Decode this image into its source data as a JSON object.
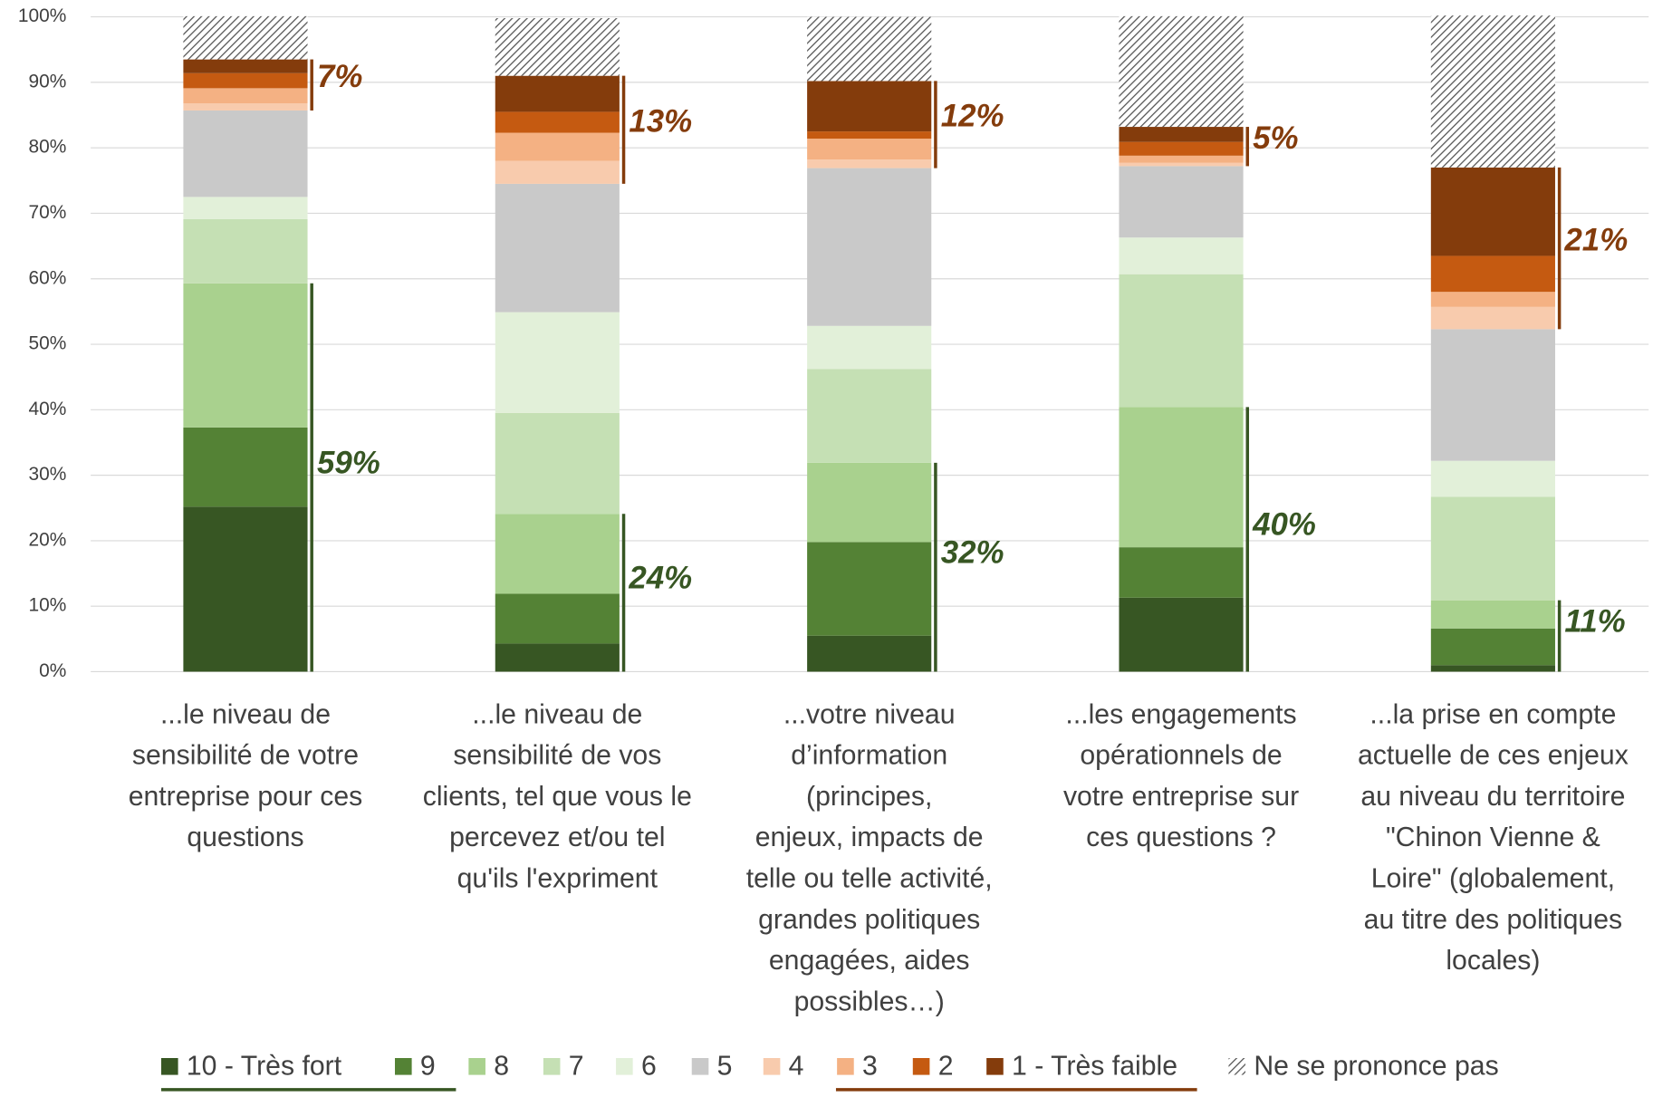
{
  "chart_data": {
    "type": "stacked_bar",
    "categories": [
      [
        "...le niveau de",
        "sensibilité de votre",
        "entreprise pour ces",
        "questions"
      ],
      [
        "...le niveau de",
        "sensibilité de vos",
        "clients, tel que vous le",
        "percevez et/ou tel",
        "qu'ils l'expriment"
      ],
      [
        "...votre niveau",
        "d’information",
        "(principes,",
        "enjeux,  impacts de",
        "telle ou telle activité,",
        "grandes politiques",
        "engagées, aides",
        "possibles…)"
      ],
      [
        "...les engagements",
        "opérationnels de",
        "votre entreprise sur",
        "ces questions ?"
      ],
      [
        "...la prise en compte",
        "actuelle de ces enjeux",
        "au niveau du territoire",
        "\"Chinon Vienne &",
        "Loire\" (globalement,",
        "au titre des politiques",
        "locales)"
      ]
    ],
    "series": [
      {
        "name": "10 - Très fort",
        "color": "#375623",
        "values": [
          25.2,
          4.3,
          5.5,
          11.3,
          1.0
        ]
      },
      {
        "name": "9",
        "color": "#548235",
        "values": [
          12.1,
          7.6,
          14.3,
          7.7,
          5.6
        ]
      },
      {
        "name": "8",
        "color": "#a9d18e",
        "values": [
          22.0,
          12.2,
          12.1,
          21.4,
          4.3
        ]
      },
      {
        "name": "7",
        "color": "#c5e0b4",
        "values": [
          9.8,
          15.4,
          14.3,
          20.3,
          15.8
        ]
      },
      {
        "name": "6",
        "color": "#e2f0d9",
        "values": [
          3.4,
          15.4,
          6.6,
          5.6,
          5.5
        ]
      },
      {
        "name": "5",
        "color": "#c9c9c9",
        "values": [
          13.2,
          19.6,
          24.1,
          10.9,
          20.1
        ]
      },
      {
        "name": "4",
        "color": "#f8cbad",
        "values": [
          1.1,
          3.5,
          1.3,
          0.5,
          3.4
        ]
      },
      {
        "name": "3",
        "color": "#f4b183",
        "values": [
          2.3,
          4.3,
          3.2,
          1.1,
          2.3
        ]
      },
      {
        "name": "2",
        "color": "#c55a11",
        "values": [
          2.3,
          3.2,
          1.1,
          2.1,
          5.5
        ]
      },
      {
        "name": "1 - Très faible",
        "color": "#843c0c",
        "values": [
          2.1,
          5.5,
          7.7,
          2.3,
          13.5
        ]
      },
      {
        "name": "Ne se prononce pas",
        "color": "hatch",
        "values": [
          6.6,
          8.8,
          9.8,
          16.9,
          23.2
        ]
      }
    ],
    "positive_labels": [
      "59%",
      "24%",
      "32%",
      "40%",
      "11%"
    ],
    "negative_labels": [
      "7%",
      "13%",
      "12%",
      "5%",
      "21%"
    ],
    "ylim": [
      0,
      100
    ],
    "yticks": [
      {
        "value": 0,
        "label": "0%"
      },
      {
        "value": 10,
        "label": "10%"
      },
      {
        "value": 20,
        "label": "20%"
      },
      {
        "value": 30,
        "label": "30%"
      },
      {
        "value": 40,
        "label": "40%"
      },
      {
        "value": 50,
        "label": "50%"
      },
      {
        "value": 60,
        "label": "60%"
      },
      {
        "value": 70,
        "label": "70%"
      },
      {
        "value": 80,
        "label": "80%"
      },
      {
        "value": 90,
        "label": "90%"
      },
      {
        "value": 100,
        "label": "100%"
      }
    ],
    "grid": true
  }
}
